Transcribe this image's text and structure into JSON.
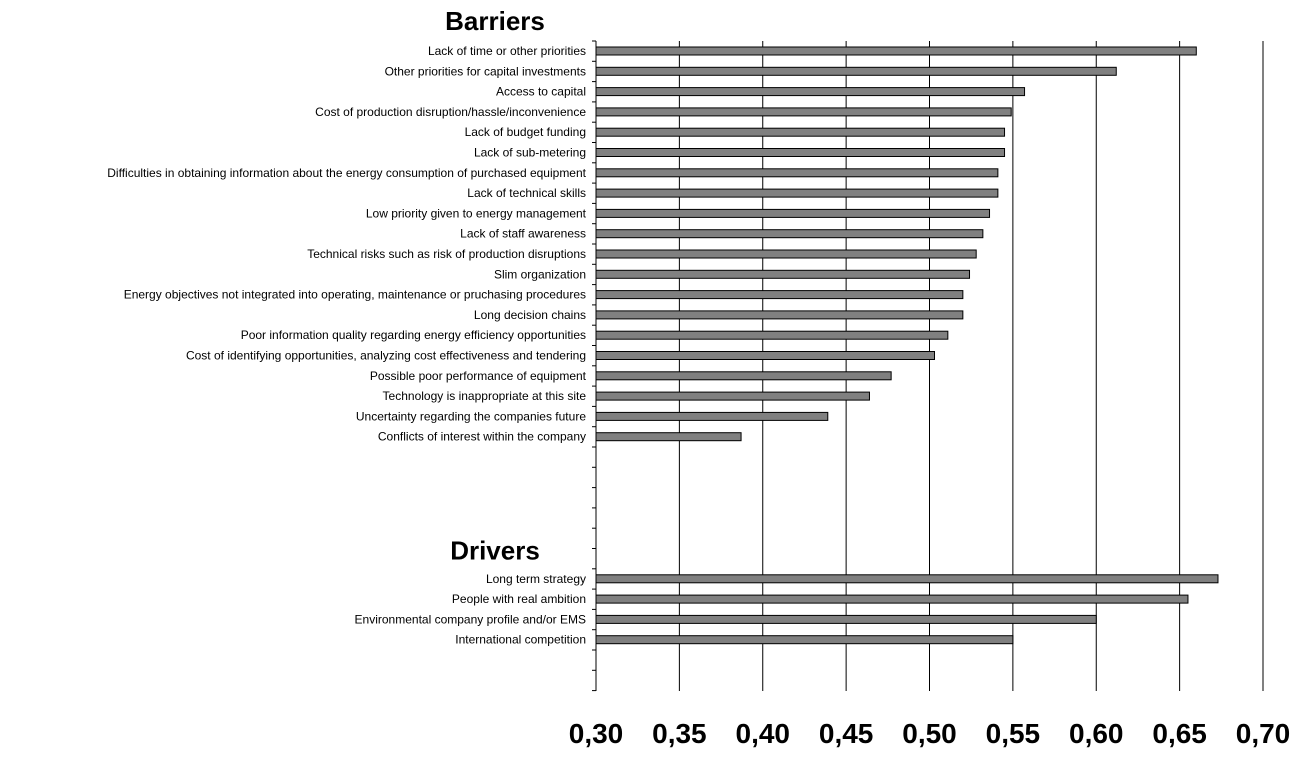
{
  "chart_data": {
    "type": "bar",
    "orientation": "horizontal",
    "grid": "vertical",
    "xlim": [
      0.3,
      0.7
    ],
    "x_ticks": [
      "0,30",
      "0,35",
      "0,40",
      "0,45",
      "0,50",
      "0,55",
      "0,60",
      "0,65",
      "0,70"
    ],
    "bar_color": "#808080",
    "groups": [
      {
        "title": "Barriers",
        "categories": [
          "Lack of time or other priorities",
          "Other priorities for capital investments",
          "Access to capital",
          "Cost of production disruption/hassle/inconvenience",
          "Lack of budget funding",
          "Lack of sub-metering",
          "Difficulties in obtaining information about the energy consumption of purchased equipment",
          "Lack of technical skills",
          "Low priority given to energy management",
          "Lack of staff awareness",
          "Technical risks such as risk of production disruptions",
          "Slim organization",
          "Energy objectives not integrated into operating, maintenance or pruchasing procedures",
          "Long decision chains",
          "Poor information quality regarding energy efficiency opportunities",
          "Cost of identifying opportunities, analyzing cost effectiveness and tendering",
          "Possible poor performance of equipment",
          "Technology is inappropriate at this site",
          "Uncertainty regarding the companies future",
          "Conflicts of interest within the company"
        ],
        "values": [
          0.66,
          0.612,
          0.557,
          0.549,
          0.545,
          0.545,
          0.541,
          0.541,
          0.536,
          0.532,
          0.528,
          0.524,
          0.52,
          0.52,
          0.511,
          0.503,
          0.477,
          0.464,
          0.439,
          0.387
        ]
      },
      {
        "title": "Drivers",
        "categories": [
          "Long term strategy",
          "People with real ambition",
          "Environmental company profile and/or EMS",
          "International competition"
        ],
        "values": [
          0.673,
          0.655,
          0.6,
          0.55
        ]
      }
    ]
  }
}
